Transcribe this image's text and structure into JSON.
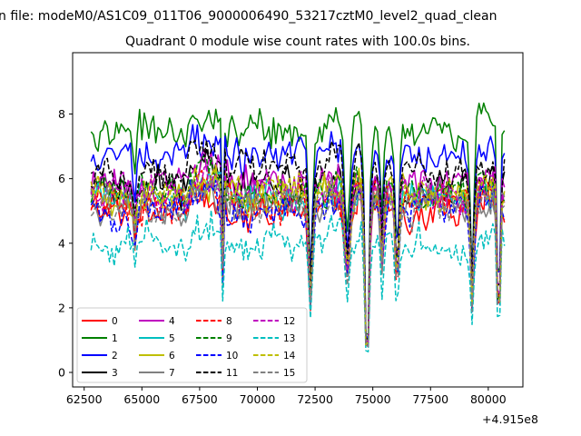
{
  "chart_data": {
    "type": "line",
    "suptitle": "n file: modeM0/AS1C09_011T06_9000006490_53217cztM0_level2_quad_clean",
    "title": "Quadrant 0 module wise count rates with 100.0s bins.",
    "xlabel": "",
    "ylabel": "",
    "x_offset_label": "+4.915e8",
    "xlim": [
      62000,
      81500
    ],
    "ylim": [
      -0.45,
      9.9
    ],
    "xticks": [
      62500,
      65000,
      67500,
      70000,
      72500,
      75000,
      77500,
      80000
    ],
    "xtick_labels": [
      "62500",
      "65000",
      "67500",
      "70000",
      "72500",
      "75000",
      "77500",
      "80000"
    ],
    "yticks": [
      0,
      2,
      4,
      6,
      8
    ],
    "ytick_labels": [
      "0",
      "2",
      "4",
      "6",
      "8"
    ],
    "x_range": [
      62800,
      80700
    ],
    "x_step": 100,
    "legend_position": "lower-left",
    "legend_columns": 4,
    "dips": [
      {
        "center": 64700,
        "width": 90,
        "depth": 0.22
      },
      {
        "center": 68500,
        "width": 60,
        "depth": 0.45
      },
      {
        "center": 72300,
        "width": 110,
        "depth": 0.6
      },
      {
        "center": 73900,
        "width": 160,
        "depth": 0.45
      },
      {
        "center": 74750,
        "width": 120,
        "depth": 1.0
      },
      {
        "center": 75400,
        "width": 90,
        "depth": 0.38
      },
      {
        "center": 76050,
        "width": 100,
        "depth": 0.5
      },
      {
        "center": 79300,
        "width": 100,
        "depth": 0.6
      },
      {
        "center": 80450,
        "width": 70,
        "depth": 0.95
      }
    ],
    "series": [
      {
        "name": "0",
        "color": "#ff0000",
        "dash": "solid",
        "mean": 5.0
      },
      {
        "name": "1",
        "color": "#008000",
        "dash": "solid",
        "mean": 7.45
      },
      {
        "name": "2",
        "color": "#0000ff",
        "dash": "solid",
        "mean": 6.7
      },
      {
        "name": "3",
        "color": "#000000",
        "dash": "solid",
        "mean": 5.8
      },
      {
        "name": "4",
        "color": "#bf00bf",
        "dash": "solid",
        "mean": 5.9
      },
      {
        "name": "5",
        "color": "#00bfbf",
        "dash": "solid",
        "mean": 5.4
      },
      {
        "name": "6",
        "color": "#bfbf00",
        "dash": "solid",
        "mean": 5.45
      },
      {
        "name": "7",
        "color": "#808080",
        "dash": "solid",
        "mean": 5.15
      },
      {
        "name": "8",
        "color": "#ff0000",
        "dash": "dashed",
        "mean": 5.25
      },
      {
        "name": "9",
        "color": "#008000",
        "dash": "dashed",
        "mean": 5.6
      },
      {
        "name": "10",
        "color": "#0000ff",
        "dash": "dashed",
        "mean": 5.0
      },
      {
        "name": "11",
        "color": "#000000",
        "dash": "dashed",
        "mean": 6.3
      },
      {
        "name": "12",
        "color": "#bf00bf",
        "dash": "dashed",
        "mean": 5.5
      },
      {
        "name": "13",
        "color": "#00bfbf",
        "dash": "dashed",
        "mean": 3.95
      },
      {
        "name": "14",
        "color": "#bfbf00",
        "dash": "dashed",
        "mean": 5.55
      },
      {
        "name": "15",
        "color": "#808080",
        "dash": "dashed",
        "mean": 5.2
      }
    ]
  }
}
